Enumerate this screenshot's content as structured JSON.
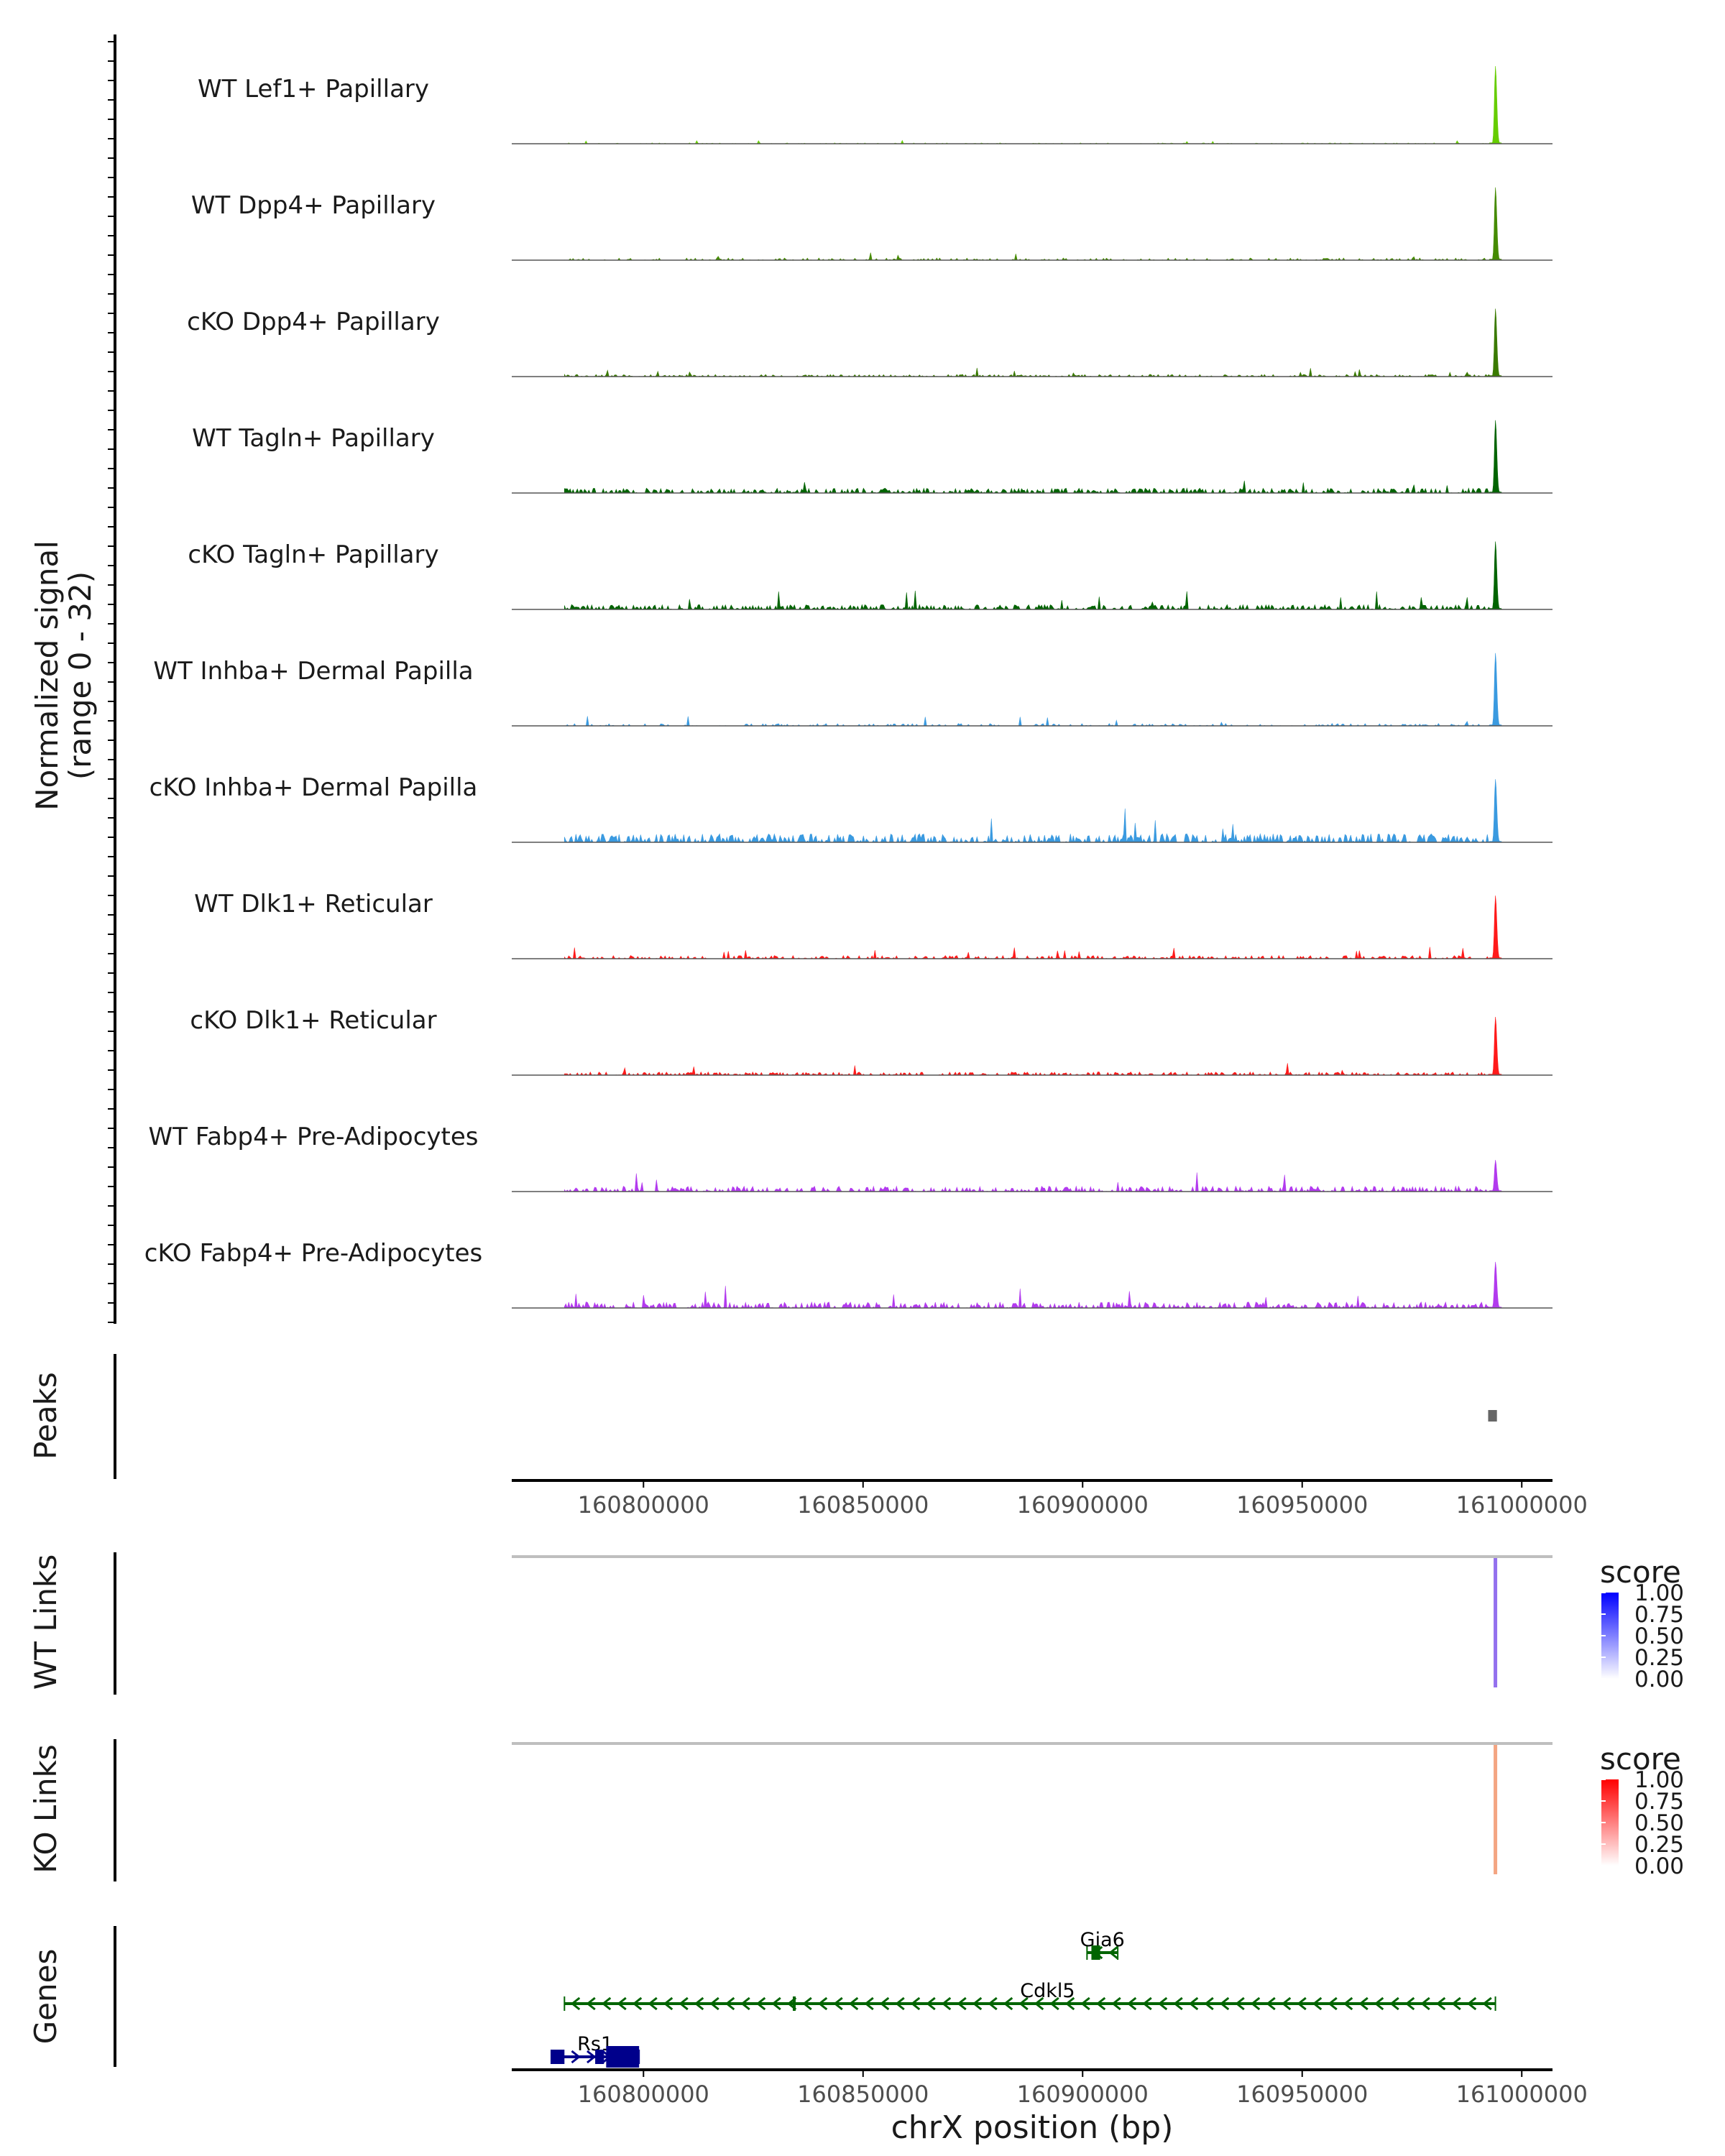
{
  "chart_data": {
    "type": "area",
    "title": "",
    "signal_axis_label": [
      "Normalized signal",
      "(range 0 - 32)"
    ],
    "ylim": [
      0,
      32
    ],
    "xlim": [
      160770000,
      161007000
    ],
    "xlabel": "chrX position (bp)",
    "x_ticks": [
      160800000,
      160850000,
      160900000,
      160950000,
      161000000
    ],
    "tracks": [
      {
        "name": "WT Lef1+ Papillary",
        "color": "#66CD00",
        "peak": 32,
        "noise": 0.35,
        "density": 0.25,
        "seed": 1
      },
      {
        "name": "WT Dpp4+ Papillary",
        "color": "#458B00",
        "peak": 30,
        "noise": 0.9,
        "density": 0.35,
        "seed": 2
      },
      {
        "name": "cKO Dpp4+ Papillary",
        "color": "#3A7A00",
        "peak": 28,
        "noise": 0.9,
        "density": 0.45,
        "seed": 3
      },
      {
        "name": "WT Tagln+ Papillary",
        "color": "#006400",
        "peak": 30,
        "noise": 2.0,
        "density": 0.55,
        "seed": 4
      },
      {
        "name": "cKO Tagln+ Papillary",
        "color": "#006400",
        "peak": 28,
        "noise": 2.0,
        "density": 0.6,
        "seed": 5
      },
      {
        "name": "WT Inhba+ Dermal Papilla",
        "color": "#3A9AE0",
        "peak": 30,
        "noise": 1.0,
        "density": 0.3,
        "seed": 6
      },
      {
        "name": "cKO Inhba+ Dermal Papilla",
        "color": "#3A9AE0",
        "peak": 26,
        "noise": 3.5,
        "density": 0.6,
        "seed": 7
      },
      {
        "name": "WT Dlk1+ Reticular",
        "color": "#FF1A1A",
        "peak": 26,
        "noise": 1.3,
        "density": 0.45,
        "seed": 8
      },
      {
        "name": "cKO Dlk1+ Reticular",
        "color": "#FF1A1A",
        "peak": 24,
        "noise": 1.3,
        "density": 0.5,
        "seed": 9
      },
      {
        "name": "WT Fabp4+ Pre-Adipocytes",
        "color": "#B23AEE",
        "peak": 13,
        "noise": 2.2,
        "density": 0.5,
        "seed": 10
      },
      {
        "name": "cKO Fabp4+ Pre-Adipocytes",
        "color": "#B23AEE",
        "peak": 19,
        "noise": 2.5,
        "density": 0.55,
        "seed": 11
      }
    ],
    "peak_center": 160994000,
    "peaks": {
      "label": "Peaks",
      "regions": [
        [
          160993000,
          160995000
        ]
      ]
    },
    "wt_links": {
      "label": "WT Links",
      "legend_title": "score",
      "legend_ticks": [
        "1.00",
        "0.75",
        "0.50",
        "0.25",
        "0.00"
      ],
      "high_color": "#0000FF",
      "link_color": "#9370EE",
      "links": [
        {
          "start": 160994000,
          "end": 160994000,
          "score": 0.55
        }
      ]
    },
    "ko_links": {
      "label": "KO Links",
      "legend_title": "score",
      "legend_ticks": [
        "1.00",
        "0.75",
        "0.50",
        "0.25",
        "0.00"
      ],
      "high_color": "#FF0000",
      "link_color": "#F4A582",
      "links": [
        {
          "start": 160994000,
          "end": 160994000,
          "score": 0.4
        }
      ]
    },
    "genes": {
      "label": "Genes",
      "items": [
        {
          "name": "Gja6",
          "start": 160901000,
          "end": 160908000,
          "strand": "-",
          "color": "#006400",
          "row": 0
        },
        {
          "name": "Cdkl5",
          "start": 160782000,
          "end": 160994000,
          "strand": "-",
          "color": "#006400",
          "row": 1
        },
        {
          "name": "Rs1",
          "start": 160779000,
          "end": 160799000,
          "strand": "+",
          "color": "#00008B",
          "row": 2
        }
      ]
    }
  }
}
